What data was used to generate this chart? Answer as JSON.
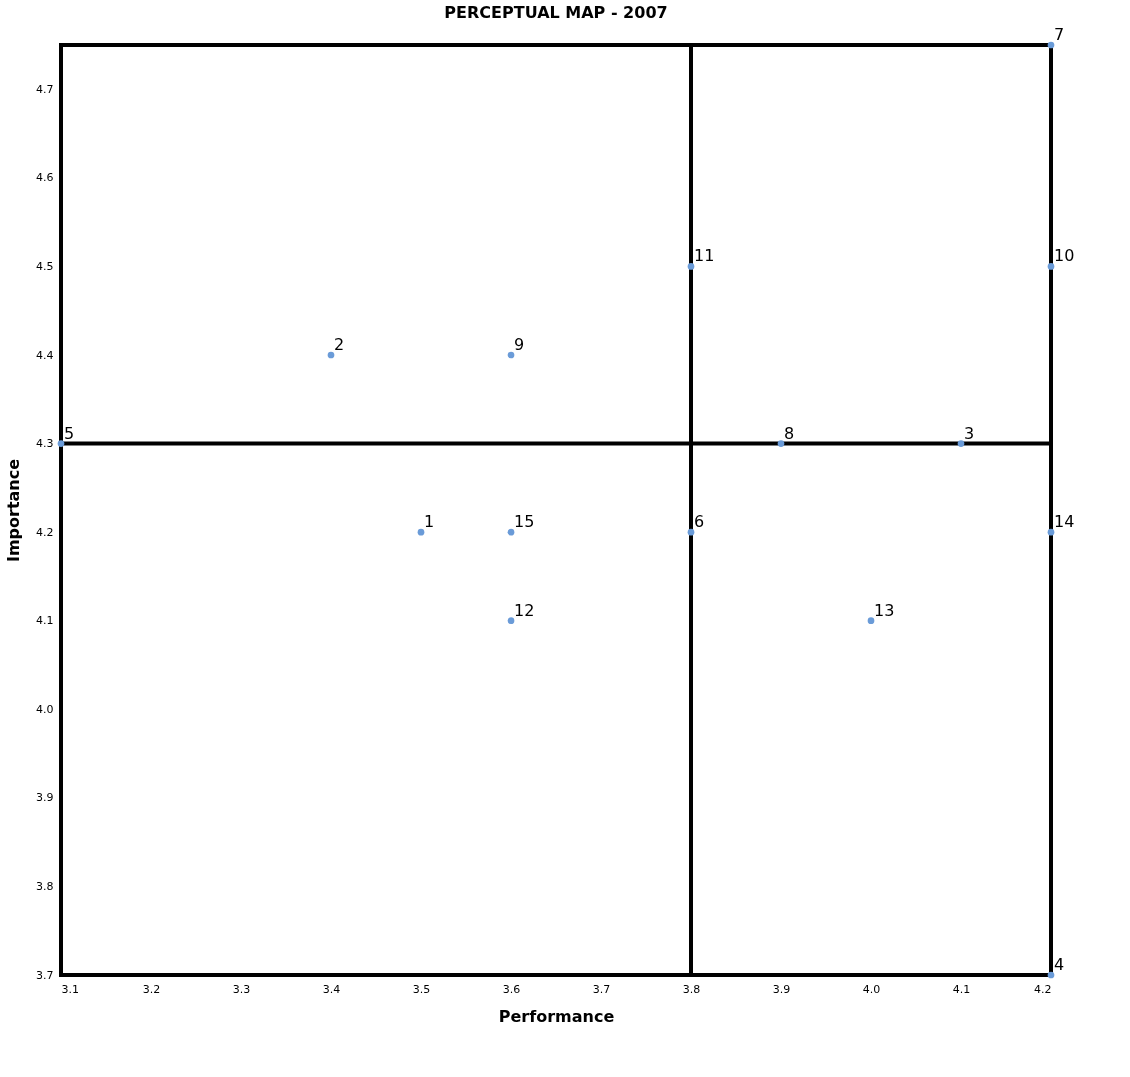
{
  "chart_data": {
    "type": "scatter",
    "title": "PERCEPTUAL MAP - 2007",
    "xlabel": "Performance",
    "ylabel": "Importance",
    "x": [
      3.5,
      3.4,
      4.1,
      4.2,
      3.1,
      3.8,
      4.2,
      3.9,
      3.6,
      4.2,
      3.8,
      3.6,
      4.0,
      4.2,
      3.6
    ],
    "series": [
      {
        "color": "#6a9bd8",
        "values": [
          4.2,
          4.4,
          4.3,
          3.7,
          4.3,
          4.2,
          4.75,
          4.3,
          4.4,
          4.5,
          4.5,
          4.1,
          4.1,
          4.2,
          4.2
        ]
      }
    ],
    "annotations": [
      {
        "text": "1",
        "x": 3.5,
        "y": 4.2
      },
      {
        "text": "2",
        "x": 3.4,
        "y": 4.4
      },
      {
        "text": "3",
        "x": 4.1,
        "y": 4.3
      },
      {
        "text": "4",
        "x": 4.2,
        "y": 3.7
      },
      {
        "text": "5",
        "x": 3.1,
        "y": 4.3
      },
      {
        "text": "6",
        "x": 3.8,
        "y": 4.2
      },
      {
        "text": "7",
        "x": 4.2,
        "y": 4.75
      },
      {
        "text": "8",
        "x": 3.9,
        "y": 4.3
      },
      {
        "text": "9",
        "x": 3.6,
        "y": 4.4
      },
      {
        "text": "10",
        "x": 4.2,
        "y": 4.5
      },
      {
        "text": "11",
        "x": 3.8,
        "y": 4.5
      },
      {
        "text": "12",
        "x": 3.6,
        "y": 4.1
      },
      {
        "text": "13",
        "x": 4.0,
        "y": 4.1
      },
      {
        "text": "14",
        "x": 4.2,
        "y": 4.2
      },
      {
        "text": "15",
        "x": 3.6,
        "y": 4.2
      }
    ],
    "xlim": [
      3.1,
      4.2
    ],
    "ylim": [
      3.7,
      4.75
    ],
    "xticks": [
      3.1,
      3.2,
      3.3,
      3.4,
      3.5,
      3.6,
      3.7,
      3.8,
      3.9,
      {
        "value": 4.0,
        "label": "4.0"
      },
      4.1,
      4.2
    ],
    "yticks": [
      3.7,
      3.8,
      3.9,
      {
        "value": 4.0,
        "label": "4.0"
      },
      4.1,
      4.2,
      4.3,
      4.4,
      4.5,
      4.6,
      4.7
    ],
    "ref_lines": [
      {
        "axis": "x",
        "value": 3.8,
        "color": "#000000"
      },
      {
        "axis": "y",
        "value": 4.3,
        "color": "#000000"
      }
    ],
    "grid": false,
    "marker": "circle"
  }
}
